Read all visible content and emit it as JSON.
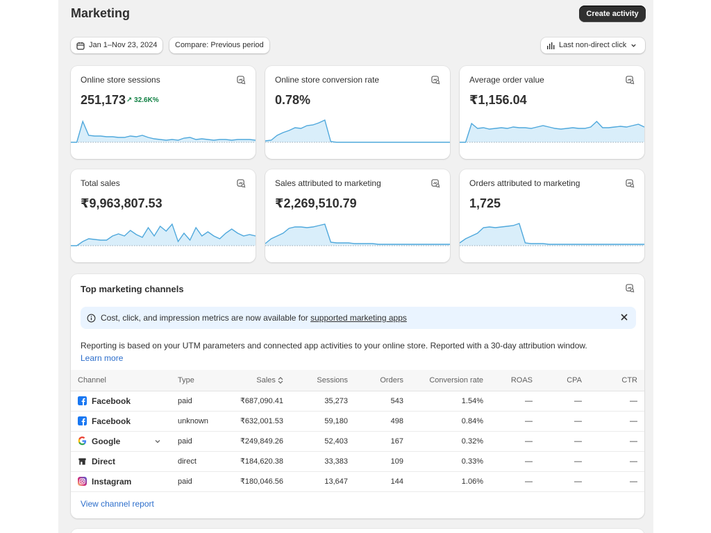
{
  "header": {
    "title": "Marketing",
    "create_button": "Create activity"
  },
  "filters": {
    "date_range": "Jan 1–Nov 23, 2024",
    "compare": "Compare: Previous period",
    "attribution": "Last non-direct click"
  },
  "metrics": [
    {
      "label": "Online store sessions",
      "value": "251,173",
      "delta": "↗ 32.6K%",
      "series": [
        0,
        0,
        30,
        10,
        9,
        9,
        8,
        8,
        7,
        7,
        9,
        8,
        10,
        7,
        5,
        4,
        3,
        4,
        3,
        6,
        7,
        4,
        5,
        4,
        3,
        4,
        4,
        3,
        4,
        4,
        4,
        3
      ]
    },
    {
      "label": "Online store conversion rate",
      "value": "0.78%",
      "delta": "",
      "series": [
        2,
        3,
        10,
        14,
        17,
        21,
        20,
        24,
        25,
        28,
        32,
        1,
        0,
        0,
        0,
        0,
        0,
        0,
        0,
        0,
        0,
        0,
        0,
        0,
        0,
        0,
        0,
        0,
        0,
        0,
        0,
        0
      ]
    },
    {
      "label": "Average order value",
      "value": "₹1,156.04",
      "delta": "",
      "series": [
        0,
        0,
        27,
        20,
        21,
        19,
        20,
        21,
        20,
        22,
        21,
        21,
        20,
        22,
        24,
        22,
        20,
        19,
        20,
        21,
        20,
        20,
        22,
        30,
        21,
        21,
        22,
        23,
        22,
        24,
        26,
        22
      ]
    },
    {
      "label": "Total sales",
      "value": "₹9,963,807.53",
      "delta": "",
      "series": [
        0,
        0,
        6,
        10,
        9,
        8,
        8,
        14,
        17,
        14,
        22,
        16,
        12,
        26,
        14,
        28,
        21,
        31,
        6,
        18,
        8,
        26,
        14,
        20,
        14,
        10,
        18,
        24,
        18,
        14,
        16,
        14
      ]
    },
    {
      "label": "Sales attributed to marketing",
      "value": "₹2,269,510.79",
      "delta": "",
      "series": [
        3,
        10,
        14,
        18,
        25,
        27,
        27,
        26,
        27,
        29,
        31,
        5,
        4,
        4,
        4,
        3,
        3,
        3,
        3,
        2,
        2,
        2,
        2,
        2,
        2,
        2,
        2,
        2,
        2,
        2,
        2,
        2
      ]
    },
    {
      "label": "Orders attributed to marketing",
      "value": "1,725",
      "delta": "",
      "series": [
        4,
        10,
        14,
        18,
        26,
        27,
        26,
        27,
        28,
        29,
        32,
        4,
        3,
        3,
        3,
        2,
        2,
        2,
        2,
        2,
        2,
        2,
        2,
        2,
        2,
        2,
        2,
        2,
        2,
        2,
        2,
        2
      ]
    }
  ],
  "channels": {
    "title": "Top marketing channels",
    "banner_text": "Cost, click, and impression metrics are now available for ",
    "banner_link": "supported marketing apps",
    "note": "Reporting is based on your UTM parameters and connected app activities to your online store. Reported with a 30-day attribution window.",
    "learn_more": "Learn more",
    "columns": [
      "Channel",
      "Type",
      "Sales",
      "Sessions",
      "Orders",
      "Conversion rate",
      "ROAS",
      "CPA",
      "CTR"
    ],
    "rows": [
      {
        "channel": "Facebook",
        "icon": "facebook-icon",
        "type": "paid",
        "sales": "₹687,090.41",
        "sessions": "35,273",
        "orders": "543",
        "conversion": "1.54%",
        "roas": "—",
        "cpa": "—",
        "ctr": "—"
      },
      {
        "channel": "Facebook",
        "icon": "facebook-icon",
        "type": "unknown",
        "sales": "₹632,001.53",
        "sessions": "59,180",
        "orders": "498",
        "conversion": "0.84%",
        "roas": "—",
        "cpa": "—",
        "ctr": "—"
      },
      {
        "channel": "Google",
        "icon": "google-icon",
        "type": "paid",
        "sales": "₹249,849.26",
        "sessions": "52,403",
        "orders": "167",
        "conversion": "0.32%",
        "roas": "—",
        "cpa": "—",
        "ctr": "—"
      },
      {
        "channel": "Direct",
        "icon": "store-icon",
        "type": "direct",
        "sales": "₹184,620.38",
        "sessions": "33,383",
        "orders": "109",
        "conversion": "0.33%",
        "roas": "—",
        "cpa": "—",
        "ctr": "—"
      },
      {
        "channel": "Instagram",
        "icon": "instagram-icon",
        "type": "paid",
        "sales": "₹180,046.56",
        "sessions": "13,647",
        "orders": "144",
        "conversion": "1.06%",
        "roas": "—",
        "cpa": "—",
        "ctr": "—"
      }
    ],
    "view_report": "View channel report"
  },
  "colors": {
    "accent_blue": "#2c6ecb",
    "spark_line": "#4fa8dc",
    "spark_fill": "#d9eefa",
    "positive": "#108043"
  }
}
